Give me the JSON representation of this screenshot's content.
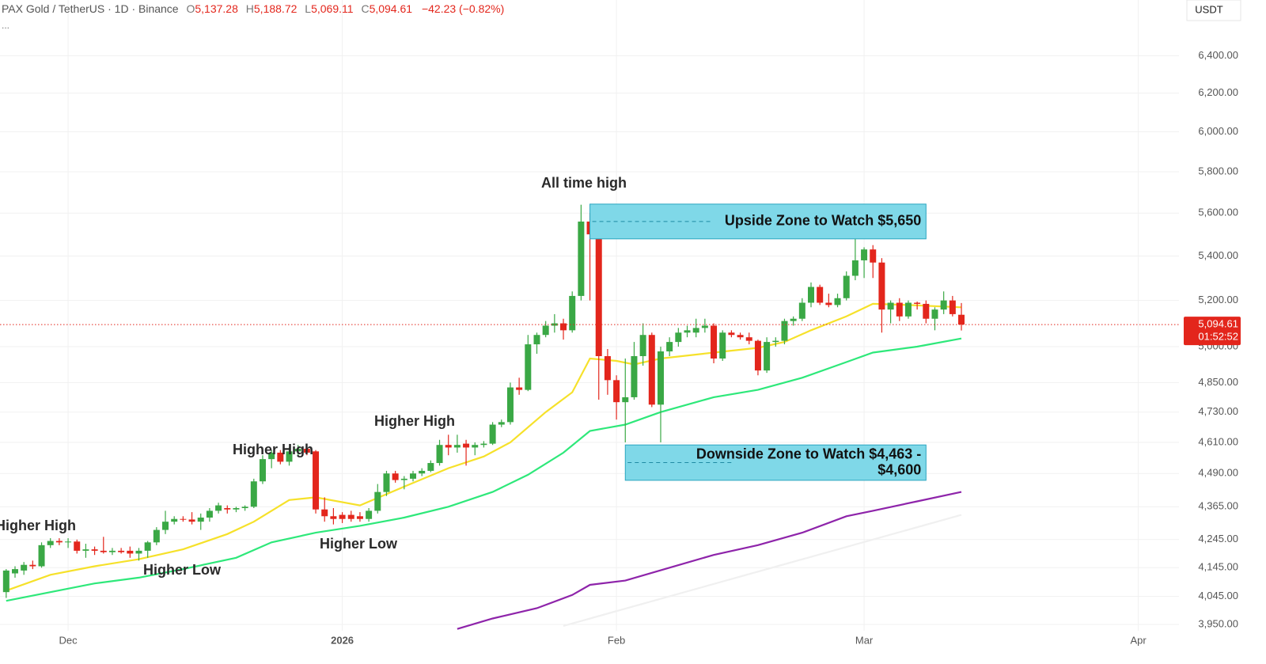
{
  "header": {
    "symbol": "PAX Gold / TetherUS · 1D · Binance",
    "fields": [
      {
        "key": "O",
        "value": "5,137.28"
      },
      {
        "key": "H",
        "value": "5,188.72"
      },
      {
        "key": "L",
        "value": "5,069.11"
      },
      {
        "key": "C",
        "value": "5,094.61"
      }
    ],
    "change": "−42.23 (−0.82%)",
    "more": "...",
    "currency": "USDT"
  },
  "chart_data": {
    "type": "candlestick",
    "log_scale": true,
    "grid": true,
    "up_color": "#3aa845",
    "down_color": "#e3261c",
    "xlim": [
      -0.7,
      132.6
    ],
    "xticks": [
      {
        "value": 7,
        "label": "Dec"
      },
      {
        "value": 38,
        "label": "2026"
      },
      {
        "value": 69,
        "label": "Feb"
      },
      {
        "value": 97,
        "label": "Mar"
      },
      {
        "value": 128,
        "label": "Apr"
      }
    ],
    "ylim": [
      3929,
      6710
    ],
    "yticks": [
      {
        "value": 6400,
        "label": "6,400.00"
      },
      {
        "value": 6200,
        "label": "6,200.00"
      },
      {
        "value": 6000,
        "label": "6,000.00"
      },
      {
        "value": 5800,
        "label": "5,800.00"
      },
      {
        "value": 5600,
        "label": "5,600.00"
      },
      {
        "value": 5400,
        "label": "5,400.00"
      },
      {
        "value": 5200,
        "label": "5,200.00"
      },
      {
        "value": 5000,
        "label": "5,000.00"
      },
      {
        "value": 4850,
        "label": "4,850.00"
      },
      {
        "value": 4730,
        "label": "4,730.00"
      },
      {
        "value": 4610,
        "label": "4,610.00"
      },
      {
        "value": 4490,
        "label": "4,490.00"
      },
      {
        "value": 4365,
        "label": "4,365.00"
      },
      {
        "value": 4245,
        "label": "4,245.00"
      },
      {
        "value": 4145,
        "label": "4,145.00"
      },
      {
        "value": 4045,
        "label": "4,045.00"
      },
      {
        "value": 3950,
        "label": "3,950.00"
      }
    ],
    "open": [
      4060,
      4125,
      4135,
      4155,
      4150,
      4225,
      4240,
      4235,
      4238,
      4205,
      4210,
      4205,
      4200,
      4205,
      4205,
      4195,
      4205,
      4235,
      4280,
      4310,
      4320,
      4318,
      4310,
      4325,
      4350,
      4360,
      4355,
      4360,
      4365,
      4460,
      4545,
      4570,
      4535,
      4575,
      4585,
      4575,
      4355,
      4330,
      4335,
      4335,
      4330,
      4320,
      4350,
      4420,
      4490,
      4465,
      4470,
      4490,
      4500,
      4530,
      4600,
      4590,
      4605,
      4590,
      4600,
      4605,
      4680,
      4690,
      4830,
      4820,
      5010,
      5050,
      5090,
      5100,
      5070,
      5220,
      5560,
      5500,
      4960,
      4860,
      4770,
      4790,
      4960,
      5050,
      4760,
      4980,
      5020,
      5060,
      5060,
      5080,
      5090,
      4950,
      5060,
      5050,
      5040,
      5025,
      4900,
      5020,
      5025,
      5110,
      5120,
      5190,
      5260,
      5190,
      5180,
      5210,
      5310,
      5380,
      5430,
      5370,
      5160,
      5190,
      5130,
      5190,
      5185,
      5120,
      5160,
      5200,
      5137.28
    ],
    "high": [
      4140,
      4150,
      4165,
      4170,
      4235,
      4250,
      4250,
      4250,
      4245,
      4230,
      4220,
      4255,
      4215,
      4215,
      4220,
      4215,
      4240,
      4290,
      4350,
      4330,
      4330,
      4345,
      4340,
      4360,
      4380,
      4370,
      4365,
      4370,
      4470,
      4560,
      4580,
      4580,
      4590,
      4600,
      4600,
      4580,
      4400,
      4360,
      4345,
      4350,
      4345,
      4360,
      4450,
      4500,
      4500,
      4480,
      4500,
      4510,
      4540,
      4620,
      4640,
      4640,
      4620,
      4610,
      4615,
      4690,
      4700,
      4850,
      4870,
      5050,
      5060,
      5110,
      5140,
      5120,
      5240,
      5640,
      5600,
      5520,
      4990,
      4880,
      4950,
      5020,
      5100,
      5060,
      5000,
      5040,
      5080,
      5090,
      5120,
      5120,
      5100,
      5070,
      5070,
      5060,
      5060,
      5030,
      5040,
      5040,
      5120,
      5130,
      5210,
      5280,
      5270,
      5230,
      5230,
      5330,
      5560,
      5440,
      5450,
      5390,
      5200,
      5210,
      5200,
      5195,
      5200,
      5170,
      5240,
      5220,
      5188.72
    ],
    "low": [
      4040,
      4110,
      4120,
      4140,
      4145,
      4215,
      4225,
      4215,
      4195,
      4180,
      4190,
      4195,
      4190,
      4195,
      4180,
      4170,
      4180,
      4225,
      4265,
      4300,
      4310,
      4300,
      4280,
      4310,
      4340,
      4340,
      4345,
      4350,
      4360,
      4450,
      4510,
      4525,
      4520,
      4560,
      4560,
      4340,
      4310,
      4300,
      4305,
      4310,
      4310,
      4310,
      4340,
      4405,
      4455,
      4430,
      4460,
      4480,
      4495,
      4520,
      4560,
      4570,
      4520,
      4560,
      4590,
      4600,
      4670,
      4680,
      4800,
      4815,
      4970,
      5040,
      5060,
      5030,
      5060,
      5200,
      5200,
      4780,
      4800,
      4700,
      4610,
      4780,
      4920,
      4750,
      4610,
      4960,
      5000,
      5040,
      5040,
      5060,
      4930,
      4940,
      5040,
      5030,
      5010,
      4880,
      4890,
      5000,
      5010,
      5090,
      5110,
      5170,
      5180,
      5170,
      5170,
      5200,
      5290,
      5300,
      5300,
      5060,
      5100,
      5110,
      5120,
      5160,
      5100,
      5070,
      5140,
      5130,
      5069.11
    ],
    "close": [
      4135,
      4140,
      4155,
      4150,
      4225,
      4240,
      4235,
      4238,
      4205,
      4210,
      4205,
      4200,
      4205,
      4200,
      4195,
      4205,
      4235,
      4280,
      4310,
      4320,
      4318,
      4310,
      4325,
      4350,
      4370,
      4355,
      4360,
      4365,
      4460,
      4545,
      4570,
      4535,
      4575,
      4585,
      4570,
      4355,
      4330,
      4320,
      4320,
      4320,
      4320,
      4350,
      4420,
      4490,
      4465,
      4470,
      4490,
      4500,
      4530,
      4600,
      4590,
      4600,
      4590,
      4600,
      4605,
      4680,
      4690,
      4830,
      4820,
      5010,
      5050,
      5090,
      5100,
      5070,
      5220,
      5560,
      5500,
      4960,
      4860,
      4770,
      4790,
      4960,
      5050,
      4760,
      4980,
      5020,
      5060,
      5070,
      5080,
      5090,
      4950,
      5060,
      5050,
      5040,
      5025,
      4900,
      5020,
      5025,
      5110,
      5120,
      5190,
      5260,
      5190,
      5180,
      5210,
      5310,
      5380,
      5430,
      5370,
      5160,
      5190,
      5130,
      5190,
      5185,
      5120,
      5160,
      5200,
      5140,
      5094.61
    ],
    "lines": [
      {
        "color": "#f6e12a",
        "x": [
          0,
          5,
          10,
          15,
          20,
          25,
          28,
          32,
          35,
          40,
          45,
          50,
          54,
          57,
          61,
          64,
          66,
          69,
          71,
          74,
          80,
          85,
          88,
          91,
          95,
          98,
          102,
          108
        ],
        "values": [
          4065,
          4120,
          4150,
          4175,
          4210,
          4265,
          4310,
          4390,
          4400,
          4370,
          4440,
          4510,
          4555,
          4610,
          4730,
          4810,
          4950,
          4940,
          4925,
          4950,
          4975,
          4995,
          5020,
          5070,
          5130,
          5185,
          5180,
          5170
        ]
      },
      {
        "color": "#2ee87a",
        "x": [
          0,
          5,
          10,
          15,
          20,
          26,
          30,
          35,
          40,
          45,
          50,
          55,
          59,
          63,
          66,
          70,
          74,
          80,
          85,
          90,
          95,
          98,
          103,
          108
        ],
        "values": [
          4030,
          4060,
          4090,
          4110,
          4140,
          4180,
          4235,
          4270,
          4295,
          4325,
          4365,
          4420,
          4485,
          4570,
          4655,
          4680,
          4730,
          4790,
          4820,
          4870,
          4935,
          4975,
          5000,
          5035
        ]
      },
      {
        "color": "#8e24aa",
        "x": [
          51,
          55,
          60,
          64,
          66,
          70,
          75,
          80,
          85,
          90,
          95,
          98,
          103,
          108
        ],
        "values": [
          3935,
          3970,
          4005,
          4050,
          4085,
          4100,
          4145,
          4190,
          4225,
          4270,
          4330,
          4350,
          4385,
          4420
        ]
      },
      {
        "color": "#f0f0f0",
        "x": [
          63,
          108
        ],
        "values": [
          3945,
          4335
        ]
      }
    ],
    "zones": [
      {
        "label": [
          "Upside Zone to Watch $5,650"
        ],
        "low": 5479,
        "high": 5643,
        "x_start": 66,
        "x_end": 104
      },
      {
        "label": [
          "Downside Zone to Watch $4,463 -",
          "$4,600"
        ],
        "low": 4464,
        "high": 4600,
        "x_start": 70,
        "x_end": 104
      }
    ],
    "annotations": [
      "All time high",
      "Higher High",
      "Higher Low",
      "Higher High",
      "Higher Low",
      "Higher High"
    ],
    "last_price_label": "5,094.61",
    "countdown": "01:52:52"
  }
}
